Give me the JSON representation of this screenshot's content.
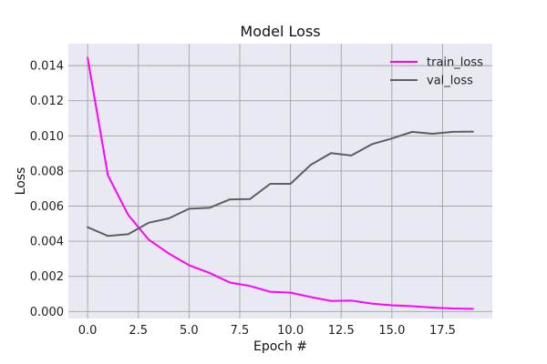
{
  "chart_data": {
    "type": "line",
    "title": "Model Loss",
    "xlabel": "Epoch #",
    "ylabel": "Loss",
    "xlim": [
      -0.95,
      19.95
    ],
    "ylim": [
      -0.0004,
      0.01525
    ],
    "xticks": [
      0.0,
      2.5,
      5.0,
      7.5,
      10.0,
      12.5,
      15.0,
      17.5
    ],
    "xtick_labels": [
      "0.0",
      "2.5",
      "5.0",
      "7.5",
      "10.0",
      "12.5",
      "15.0",
      "17.5"
    ],
    "yticks": [
      0.0,
      0.002,
      0.004,
      0.006,
      0.008,
      0.01,
      0.012,
      0.014
    ],
    "ytick_labels": [
      "0.000",
      "0.002",
      "0.004",
      "0.006",
      "0.008",
      "0.010",
      "0.012",
      "0.014"
    ],
    "grid": true,
    "legend_position": "top-right",
    "colors": {
      "plot_background": "#E9E9F3",
      "grid": "#A3A3A3",
      "train_loss": "#FF00FF",
      "val_loss": "#5E5E5E"
    },
    "x": [
      0,
      1,
      2,
      3,
      4,
      5,
      6,
      7,
      8,
      9,
      10,
      11,
      12,
      13,
      14,
      15,
      16,
      17,
      18,
      19
    ],
    "series": [
      {
        "name": "train_loss",
        "color": "#FF00FF",
        "values": [
          0.01445,
          0.00775,
          0.0055,
          0.0041,
          0.0033,
          0.00263,
          0.0022,
          0.00165,
          0.00145,
          0.00112,
          0.00107,
          0.00082,
          0.0006,
          0.00062,
          0.00045,
          0.00035,
          0.0003,
          0.00022,
          0.00017,
          0.00015
        ]
      },
      {
        "name": "val_loss",
        "color": "#5E5E5E",
        "values": [
          0.0048,
          0.0043,
          0.0044,
          0.00505,
          0.0053,
          0.00585,
          0.0059,
          0.00638,
          0.0064,
          0.00727,
          0.00727,
          0.00835,
          0.00902,
          0.00888,
          0.00952,
          0.00985,
          0.01023,
          0.01012,
          0.01023,
          0.01024
        ]
      }
    ]
  }
}
